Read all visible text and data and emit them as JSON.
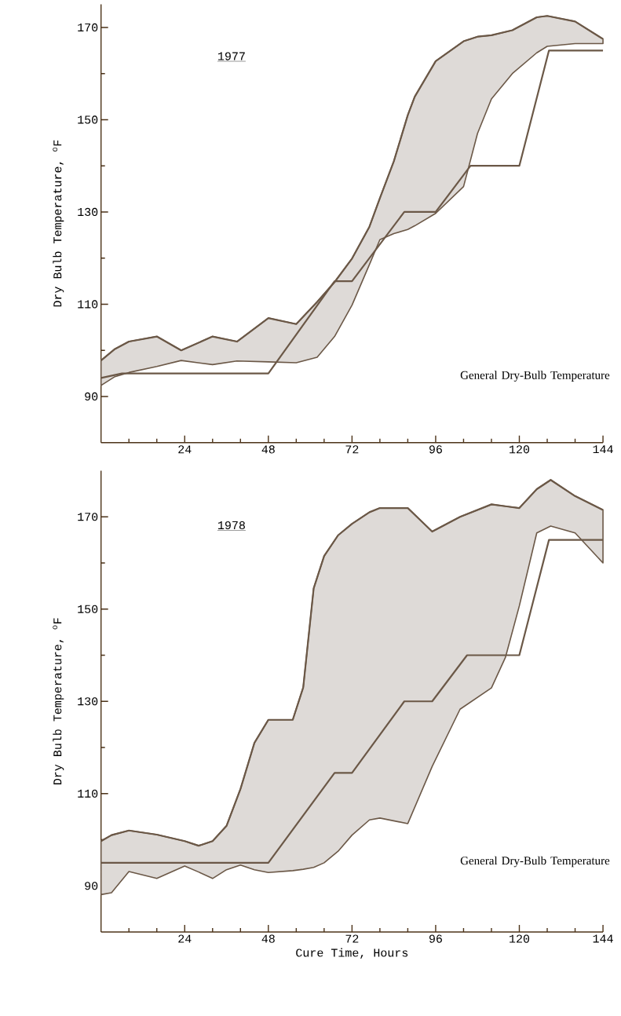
{
  "chart_data": [
    {
      "type": "line",
      "title": "1977",
      "ylabel": "Dry Bulb Temperature, $^{o}$F",
      "xlim": [
        0,
        144
      ],
      "ylim": [
        80,
        175
      ],
      "xticks": [
        {
          "value": 8,
          "label": null
        },
        {
          "value": 16,
          "label": null
        },
        24,
        {
          "value": 32,
          "label": null
        },
        {
          "value": 40,
          "label": null
        },
        48,
        {
          "value": 56,
          "label": null
        },
        {
          "value": 64,
          "label": null
        },
        72,
        {
          "value": 80,
          "label": null
        },
        {
          "value": 88,
          "label": null
        },
        96,
        {
          "value": 104,
          "label": null
        },
        {
          "value": 112,
          "label": null
        },
        120,
        {
          "value": 128,
          "label": null
        },
        {
          "value": 136,
          "label": null
        },
        144
      ],
      "yticks": [
        90,
        {
          "value": 100,
          "label": null
        },
        110,
        {
          "value": 120,
          "label": null
        },
        130,
        {
          "value": 140,
          "label": null
        },
        150,
        {
          "value": 160,
          "label": null
        },
        170
      ],
      "series": [
        {
          "color": "#6b5847",
          "x": [
            0,
            4,
            8,
            16,
            23,
            32,
            39,
            48,
            56,
            62,
            67,
            72,
            77,
            80,
            84,
            88,
            90,
            96,
            104,
            108,
            112,
            118,
            125,
            128,
            136,
            144
          ],
          "values": [
            97.8,
            100.3,
            101.9,
            103,
            100,
            103,
            101.9,
            107,
            105.7,
            110.5,
            114.8,
            119.9,
            126.8,
            133,
            141,
            151,
            155,
            162.7,
            167,
            168,
            168.3,
            169.4,
            172.2,
            172.5,
            171.3,
            167.5
          ],
          "upper": [
            97.8,
            100.3,
            101.9,
            103,
            100,
            103,
            101.9,
            107,
            105.7,
            110.5,
            114.8,
            119.9,
            126.8,
            133,
            141,
            151,
            155,
            162.7,
            167,
            168,
            168.3,
            169.4,
            172.2,
            172.5,
            171.3,
            167.5
          ],
          "lower": [
            92.4,
            94.3,
            95.2,
            96.5,
            97.8,
            96.9,
            97.7,
            97.5,
            97.3,
            98.5,
            103,
            109.8,
            118.6,
            124,
            125.3,
            126.2,
            127,
            129.7,
            135.5,
            147,
            154.5,
            160,
            164.5,
            165.9,
            166.5,
            166.5
          ]
        },
        {
          "name": "General Dry-Bulb Temperature",
          "color": "#6b5847",
          "x": [
            0,
            6,
            48,
            67,
            72,
            87,
            96,
            106,
            120,
            128.5,
            144
          ],
          "values": [
            94,
            95,
            95,
            115,
            115,
            130,
            130,
            140,
            140,
            165,
            165
          ]
        }
      ]
    },
    {
      "type": "line",
      "title": "1978",
      "ylabel": "Dry Bulb Temperature, $^{o}$F",
      "xlabel": "Cure Time, Hours",
      "xlim": [
        0,
        144
      ],
      "ylim": [
        80,
        180
      ],
      "xticks": [
        {
          "value": 8,
          "label": null
        },
        {
          "value": 16,
          "label": null
        },
        24,
        {
          "value": 32,
          "label": null
        },
        {
          "value": 40,
          "label": null
        },
        48,
        {
          "value": 56,
          "label": null
        },
        {
          "value": 64,
          "label": null
        },
        72,
        {
          "value": 80,
          "label": null
        },
        {
          "value": 88,
          "label": null
        },
        96,
        {
          "value": 104,
          "label": null
        },
        {
          "value": 112,
          "label": null
        },
        120,
        {
          "value": 128,
          "label": null
        },
        {
          "value": 136,
          "label": null
        },
        144
      ],
      "yticks": [
        90,
        {
          "value": 100,
          "label": null
        },
        110,
        {
          "value": 120,
          "label": null
        },
        130,
        {
          "value": 140,
          "label": null
        },
        150,
        {
          "value": 160,
          "label": null
        },
        170
      ],
      "series": [
        {
          "color": "#6b5847",
          "x": [
            0,
            3,
            8,
            16,
            24,
            28,
            32,
            36,
            40,
            44,
            48,
            55,
            58,
            61,
            64,
            68,
            72,
            77,
            80,
            88,
            95,
            103,
            112,
            116,
            120,
            125,
            129,
            136,
            144
          ],
          "values": [
            99.7,
            101,
            102,
            101.1,
            99.7,
            98.7,
            99.7,
            103,
            111,
            121,
            126,
            126,
            133,
            154.5,
            161.5,
            166,
            168.5,
            171,
            171.9,
            171.9,
            166.8,
            170,
            172.7,
            172.3,
            171.9,
            176,
            178,
            174.5,
            171.5
          ],
          "upper": [
            99.7,
            101,
            102,
            101.1,
            99.7,
            98.7,
            99.7,
            103,
            111,
            121,
            126,
            126,
            133,
            154.5,
            161.5,
            166,
            168.5,
            171,
            171.9,
            171.9,
            166.8,
            170,
            172.7,
            172.3,
            171.9,
            176,
            178,
            174.5,
            171.5
          ],
          "lower": [
            88.1,
            88.5,
            93.1,
            91.6,
            94.3,
            93,
            91.6,
            93.5,
            94.5,
            93.5,
            92.9,
            93.3,
            93.6,
            94,
            95,
            97.5,
            101,
            104.3,
            104.7,
            103.5,
            115.9,
            128.3,
            132.9,
            139.5,
            150.7,
            166.5,
            168,
            166.5,
            160
          ]
        },
        {
          "name": "General Dry-Bulb Temperature",
          "color": "#6b5847",
          "x": [
            0,
            48,
            67,
            72,
            87,
            95,
            105,
            120,
            128.5,
            144
          ],
          "values": [
            95,
            95,
            114.5,
            114.5,
            130,
            130,
            140,
            140,
            165,
            165
          ]
        }
      ]
    }
  ]
}
